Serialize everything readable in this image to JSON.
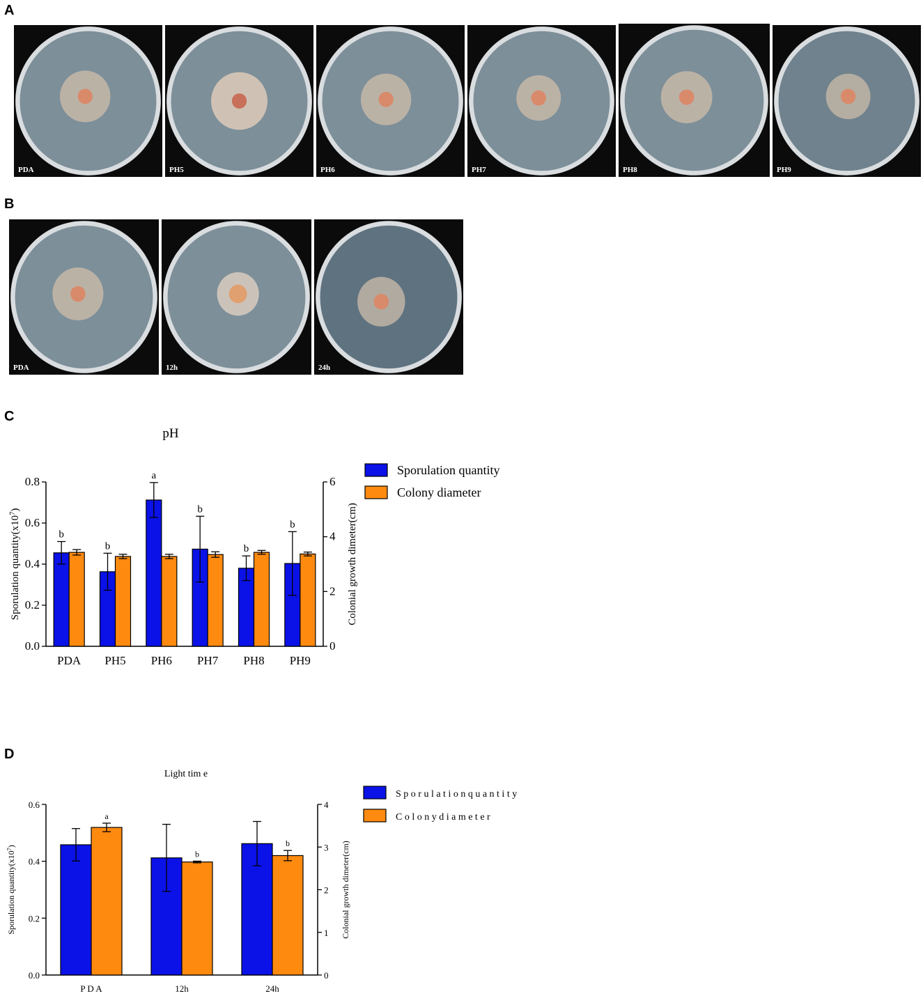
{
  "panels": {
    "a": {
      "letter": "A",
      "plates": [
        {
          "label": "PDA"
        },
        {
          "label": "PH5"
        },
        {
          "label": "PH6"
        },
        {
          "label": "PH7"
        },
        {
          "label": "PH8"
        },
        {
          "label": "PH9"
        }
      ]
    },
    "b": {
      "letter": "B",
      "plates": [
        {
          "label": "PDA"
        },
        {
          "label": "12h"
        },
        {
          "label": "24h"
        }
      ]
    },
    "c": {
      "letter": "C"
    },
    "d": {
      "letter": "D"
    }
  },
  "colors": {
    "sporulation": "#0a12e8",
    "colony": "#ff8a10",
    "agar": "#7d8f99"
  },
  "chart_data": [
    {
      "type": "bar",
      "title": "pH",
      "categories": [
        "PDA",
        "PH5",
        "PH6",
        "PH7",
        "PH8",
        "PH9"
      ],
      "ylabel": "Sporulation quantity(x10",
      "ylabel_sup": "7",
      "ylabel_close": ")",
      "y2label": "Colonial growth dimeter(cm)",
      "ylim": [
        0,
        0.8
      ],
      "yticks": [
        "0.0",
        "0.2",
        "0.4",
        "0.6",
        "0.8"
      ],
      "y2lim": [
        0,
        6
      ],
      "y2ticks": [
        "0",
        "2",
        "4",
        "6"
      ],
      "legend_position": "right",
      "series": [
        {
          "name": "Sporulation quantity",
          "axis": "left",
          "values": [
            0.455,
            0.363,
            0.712,
            0.473,
            0.38,
            0.403
          ],
          "errors": [
            0.055,
            0.09,
            0.085,
            0.16,
            0.06,
            0.155
          ],
          "letters": [
            "b",
            "b",
            "a",
            "b",
            "b",
            "b"
          ]
        },
        {
          "name": "Colony diameter",
          "axis": "right",
          "values": [
            3.43,
            3.28,
            3.28,
            3.35,
            3.43,
            3.37
          ],
          "errors": [
            0.1,
            0.08,
            0.08,
            0.1,
            0.07,
            0.07
          ],
          "letters": [
            "",
            "",
            "",
            "",
            "",
            ""
          ]
        }
      ]
    },
    {
      "type": "bar",
      "title": "Light tim e",
      "categories": [
        "P D A",
        "12h",
        "24h"
      ],
      "ylabel": "Sporulation quantity(x10",
      "ylabel_sup": "7",
      "ylabel_close": ")",
      "y2label": "Colonial growth dimeter(cm)",
      "ylim": [
        0,
        0.6
      ],
      "yticks": [
        "0.0",
        "0.2",
        "0.4",
        "0.6"
      ],
      "y2lim": [
        0,
        4
      ],
      "y2ticks": [
        "0",
        "1",
        "2",
        "3",
        "4"
      ],
      "legend_position": "right",
      "series": [
        {
          "name": "S p o r u l a t i o n   q u a n t i t y",
          "axis": "left",
          "values": [
            0.458,
            0.412,
            0.462
          ],
          "errors": [
            0.057,
            0.118,
            0.078
          ],
          "letters": [
            "",
            "",
            ""
          ]
        },
        {
          "name": "C o l o n y   d i a m e t e r",
          "axis": "right",
          "values": [
            3.46,
            2.65,
            2.8
          ],
          "errors": [
            0.1,
            0.02,
            0.12
          ],
          "letters": [
            "a",
            "b",
            "b"
          ]
        }
      ]
    }
  ]
}
